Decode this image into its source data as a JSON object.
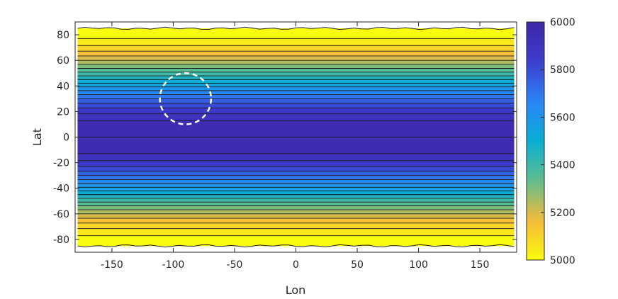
{
  "chart_data": {
    "type": "heatmap",
    "subtype": "filled-contour",
    "title": "",
    "xlabel": "Lon",
    "ylabel": "Lat",
    "xlim": [
      -180,
      180
    ],
    "ylim": [
      -90,
      90
    ],
    "xticks": [
      -150,
      -100,
      -50,
      0,
      50,
      100,
      150
    ],
    "yticks": [
      -80,
      -60,
      -40,
      -20,
      0,
      20,
      40,
      60,
      80
    ],
    "data_extent": {
      "lon": [
        -178,
        178
      ],
      "lat": [
        -85,
        85
      ]
    },
    "field": {
      "description": "zonally uniform field, maximum at the equator",
      "equator_value": 6000,
      "edge_value": 5000,
      "contour_levels": [
        5000,
        5050,
        5100,
        5150,
        5200,
        5250,
        5300,
        5350,
        5400,
        5450,
        5500,
        5550,
        5600,
        5650,
        5700,
        5750,
        5800,
        5850,
        5900,
        5950,
        6000
      ]
    },
    "colorbar": {
      "range": [
        5000,
        6000
      ],
      "ticks": [
        5000,
        5200,
        5400,
        5600,
        5800,
        6000
      ],
      "colormap": "parula",
      "colors": [
        "#f9fb0e",
        "#f6ba3a",
        "#5fbe8d",
        "#0aaed4",
        "#2b85f8",
        "#3d3ccd",
        "#3e26a8"
      ]
    },
    "annotation": {
      "shape": "dashed-circle",
      "color": "#ffffff",
      "center": {
        "lon": -90,
        "lat": 30
      },
      "radius_lat_deg": 20
    },
    "grid": false,
    "box": true
  }
}
